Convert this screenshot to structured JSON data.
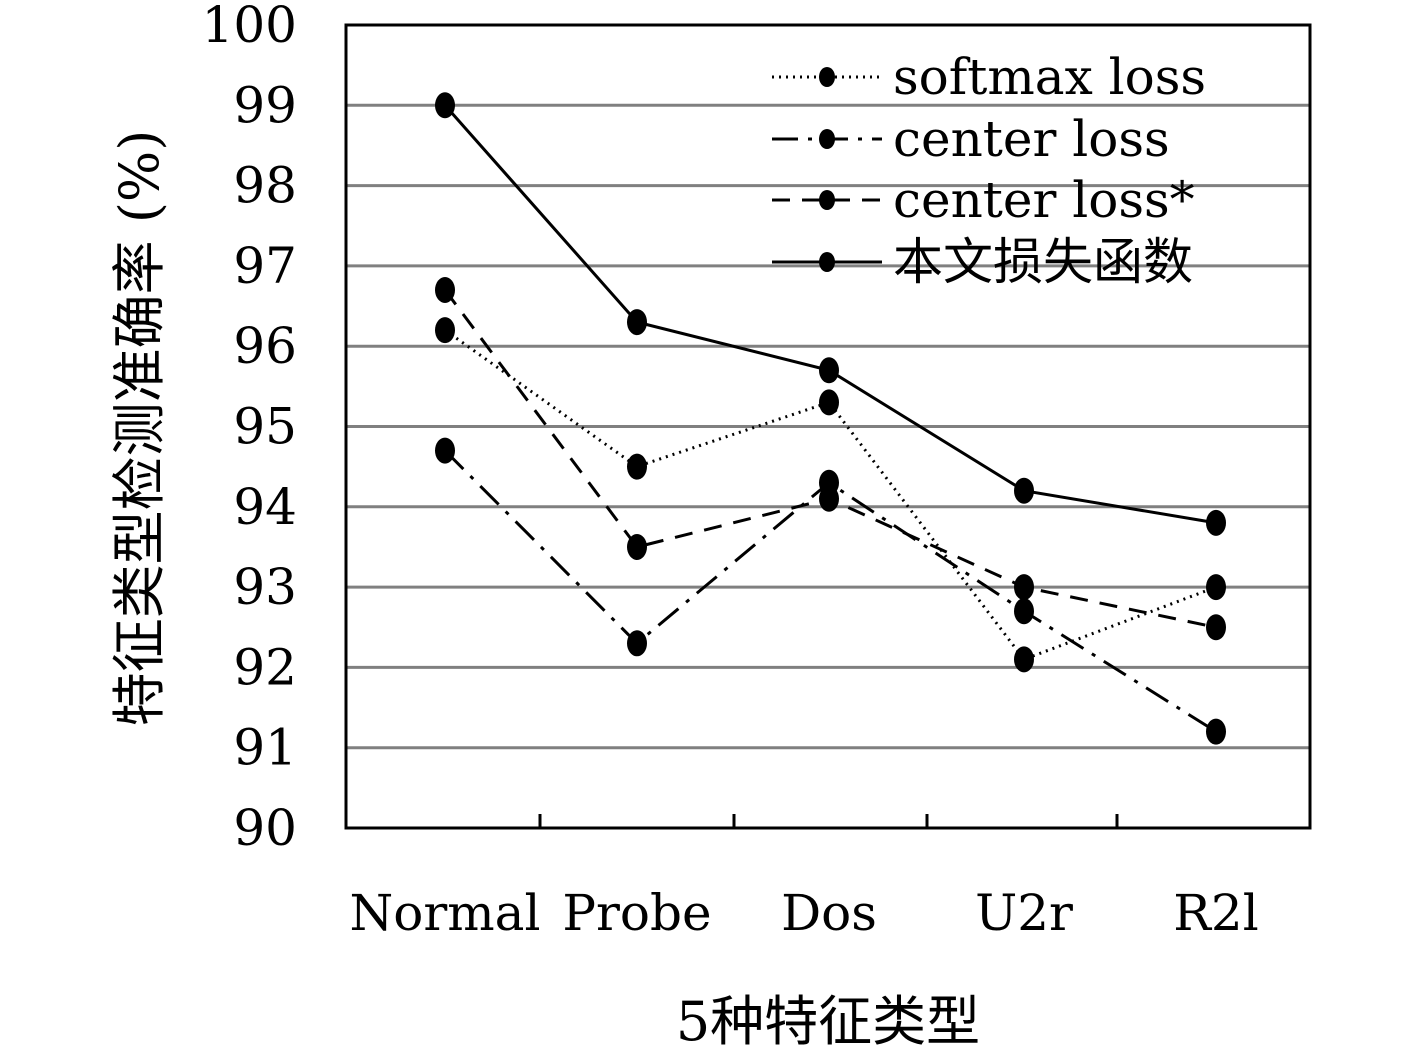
{
  "chart_data": {
    "type": "line",
    "xlabel": "5种特征类型",
    "ylabel": "特征类型检测准确率 (%)",
    "categories": [
      "Normal",
      "Probe",
      "Dos",
      "U2r",
      "R2l"
    ],
    "ylim": [
      90,
      100
    ],
    "yticks": [
      90,
      91,
      92,
      93,
      94,
      95,
      96,
      97,
      98,
      99,
      100
    ],
    "grid": true,
    "legend_position": "top-right",
    "series": [
      {
        "name": "softmax loss",
        "values": [
          96.2,
          94.5,
          95.3,
          92.1,
          93.0
        ],
        "line_style": "dotted",
        "color": "#000000"
      },
      {
        "name": "center loss",
        "values": [
          94.7,
          92.3,
          94.3,
          92.7,
          91.2
        ],
        "line_style": "dash-dot",
        "color": "#000000"
      },
      {
        "name": "center loss*",
        "values": [
          96.7,
          93.5,
          94.1,
          93.0,
          92.5
        ],
        "line_style": "dashed",
        "color": "#000000"
      },
      {
        "name": "本文损失函数",
        "values": [
          99.0,
          96.3,
          95.7,
          94.2,
          93.8
        ],
        "line_style": "solid",
        "color": "#000000"
      }
    ],
    "gridline_color": "#808080"
  }
}
